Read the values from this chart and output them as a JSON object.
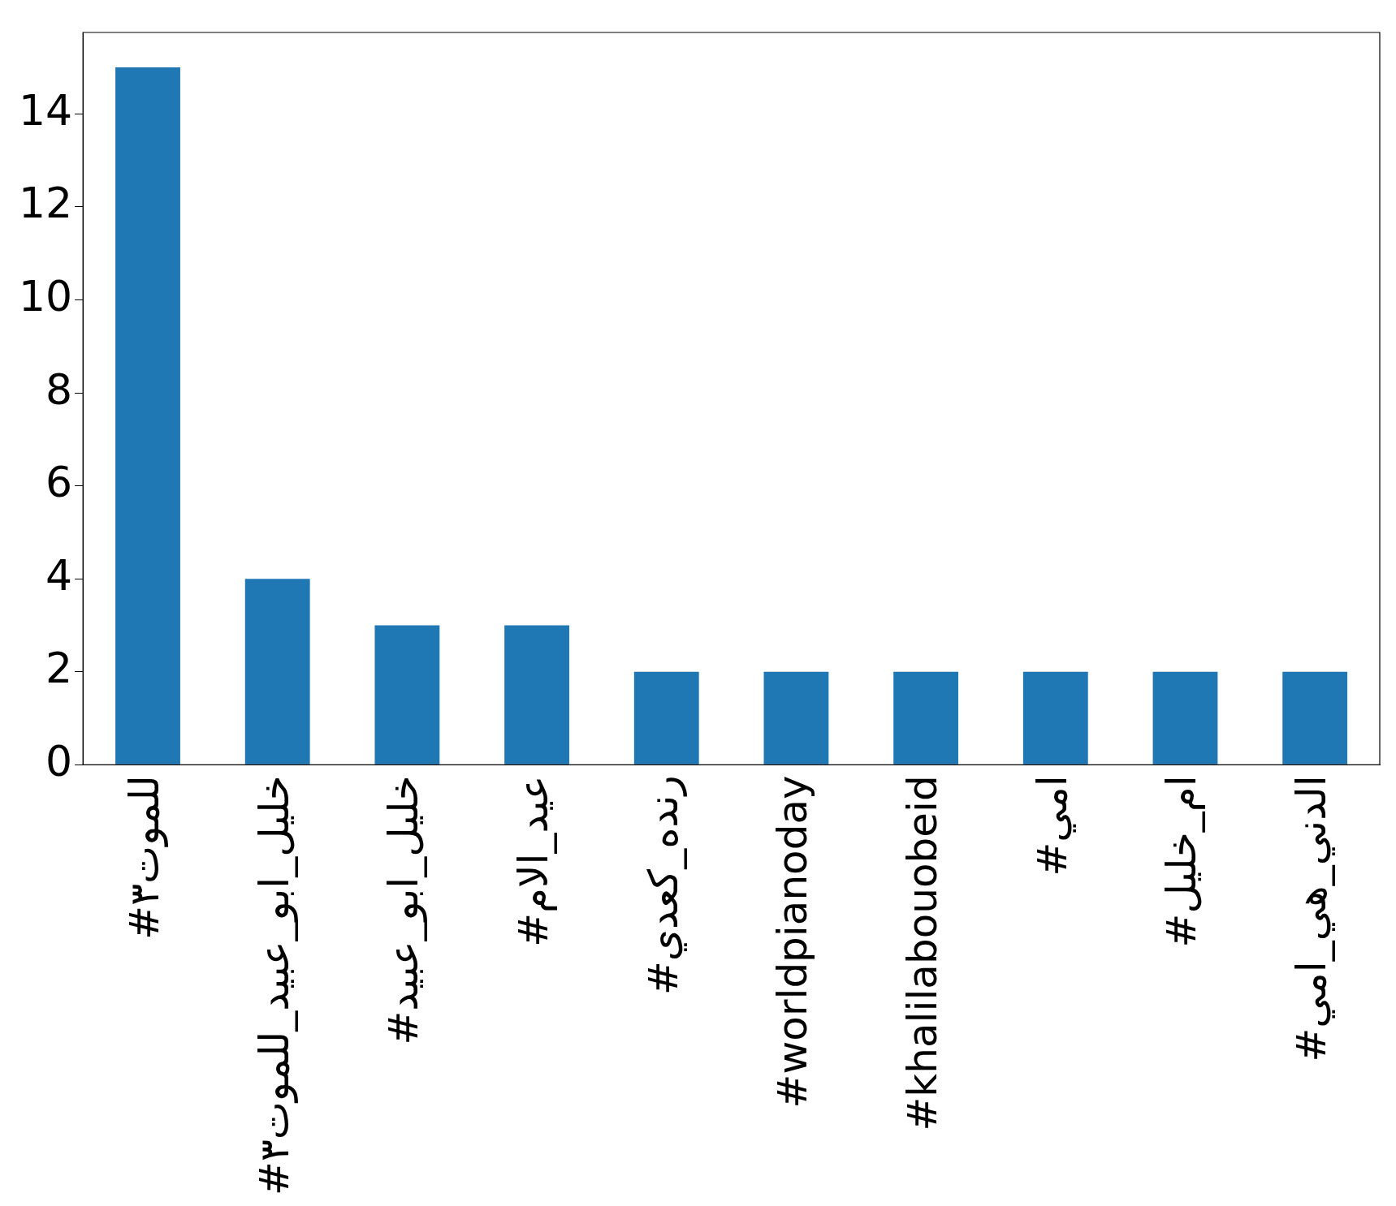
{
  "chart_data": {
    "type": "bar",
    "categories": [
      "#للموت٣",
      "#خليل_ابو_عبيد_للموت٣",
      "#خليل_ابو_عبيد",
      "#عيد_الام",
      "#رنده_كعدي",
      "#worldpianoday",
      "#khalilabouobeid",
      "#امي",
      "#ام_خليل",
      "#الدني_هي_امي"
    ],
    "values": [
      15,
      4,
      3,
      3,
      2,
      2,
      2,
      2,
      2,
      2
    ],
    "color": "#1f77b4",
    "ylim": [
      0,
      15.75
    ],
    "yticks": [
      0,
      2,
      4,
      6,
      8,
      10,
      12,
      14
    ],
    "grid": false,
    "legend": false
  }
}
